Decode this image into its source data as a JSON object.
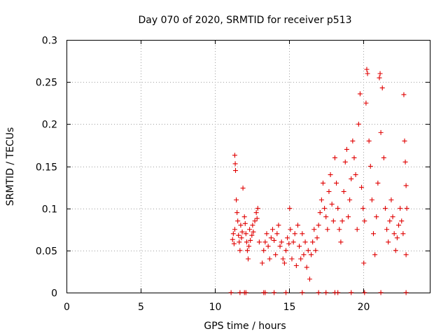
{
  "chart_data": {
    "type": "scatter",
    "title": "Day 070 of 2020, SRMTID for receiver p513",
    "xlabel": "GPS time / hours",
    "ylabel": "SRMTID / TECUs",
    "xlim": [
      0,
      24.5
    ],
    "ylim": [
      0,
      0.3
    ],
    "x_ticks": [
      0,
      5,
      10,
      15,
      20
    ],
    "x_tick_labels": [
      "0",
      "5",
      "10",
      "15",
      "20"
    ],
    "y_ticks": [
      0,
      0.05,
      0.1,
      0.15,
      0.2,
      0.25,
      0.3
    ],
    "y_tick_labels": [
      "0",
      "0.05",
      "0.1",
      "0.15",
      "0.2",
      "0.25",
      "0.3"
    ],
    "grid": true,
    "marker": "plus",
    "marker_color": "#e00000",
    "series": [
      {
        "name": "p513",
        "points": [
          [
            11.1,
            0.0
          ],
          [
            11.7,
            0.0
          ],
          [
            12.0,
            0.0
          ],
          [
            12.1,
            0.0
          ],
          [
            13.3,
            0.0
          ],
          [
            13.4,
            0.0
          ],
          [
            14.0,
            0.0
          ],
          [
            14.8,
            0.0
          ],
          [
            15.9,
            0.0
          ],
          [
            17.0,
            0.0
          ],
          [
            17.5,
            0.0
          ],
          [
            18.1,
            0.0
          ],
          [
            18.3,
            0.0
          ],
          [
            19.2,
            0.0
          ],
          [
            20.1,
            0.0
          ],
          [
            21.2,
            0.0
          ],
          [
            22.9,
            0.0
          ],
          [
            11.2,
            0.063
          ],
          [
            11.25,
            0.07
          ],
          [
            11.3,
            0.058
          ],
          [
            11.35,
            0.075
          ],
          [
            11.35,
            0.163
          ],
          [
            11.38,
            0.153
          ],
          [
            11.4,
            0.145
          ],
          [
            11.45,
            0.11
          ],
          [
            11.5,
            0.095
          ],
          [
            11.55,
            0.085
          ],
          [
            11.6,
            0.068
          ],
          [
            11.65,
            0.06
          ],
          [
            11.7,
            0.05
          ],
          [
            11.75,
            0.08
          ],
          [
            11.8,
            0.065
          ],
          [
            11.85,
            0.072
          ],
          [
            11.9,
            0.124
          ],
          [
            12.0,
            0.09
          ],
          [
            12.05,
            0.082
          ],
          [
            12.1,
            0.07
          ],
          [
            12.15,
            0.06
          ],
          [
            12.2,
            0.05
          ],
          [
            12.25,
            0.04
          ],
          [
            12.3,
            0.055
          ],
          [
            12.35,
            0.075
          ],
          [
            12.4,
            0.062
          ],
          [
            12.5,
            0.068
          ],
          [
            12.55,
            0.08
          ],
          [
            12.6,
            0.072
          ],
          [
            12.7,
            0.085
          ],
          [
            12.8,
            0.095
          ],
          [
            12.85,
            0.088
          ],
          [
            12.9,
            0.1
          ],
          [
            13.0,
            0.06
          ],
          [
            13.2,
            0.035
          ],
          [
            13.3,
            0.05
          ],
          [
            13.4,
            0.06
          ],
          [
            13.5,
            0.07
          ],
          [
            13.6,
            0.055
          ],
          [
            13.7,
            0.04
          ],
          [
            13.8,
            0.065
          ],
          [
            13.9,
            0.075
          ],
          [
            14.0,
            0.062
          ],
          [
            14.1,
            0.045
          ],
          [
            14.2,
            0.07
          ],
          [
            14.3,
            0.08
          ],
          [
            14.4,
            0.055
          ],
          [
            14.5,
            0.06
          ],
          [
            14.6,
            0.04
          ],
          [
            14.7,
            0.035
          ],
          [
            14.8,
            0.05
          ],
          [
            14.9,
            0.065
          ],
          [
            15.0,
            0.058
          ],
          [
            15.05,
            0.1
          ],
          [
            15.1,
            0.075
          ],
          [
            15.2,
            0.04
          ],
          [
            15.3,
            0.06
          ],
          [
            15.4,
            0.07
          ],
          [
            15.5,
            0.032
          ],
          [
            15.6,
            0.08
          ],
          [
            15.7,
            0.055
          ],
          [
            15.8,
            0.04
          ],
          [
            15.9,
            0.07
          ],
          [
            16.0,
            0.045
          ],
          [
            16.1,
            0.06
          ],
          [
            16.2,
            0.03
          ],
          [
            16.3,
            0.05
          ],
          [
            16.4,
            0.016
          ],
          [
            16.5,
            0.045
          ],
          [
            16.6,
            0.06
          ],
          [
            16.7,
            0.075
          ],
          [
            16.8,
            0.05
          ],
          [
            16.9,
            0.065
          ],
          [
            17.0,
            0.08
          ],
          [
            17.1,
            0.095
          ],
          [
            17.2,
            0.11
          ],
          [
            17.3,
            0.13
          ],
          [
            17.4,
            0.1
          ],
          [
            17.5,
            0.09
          ],
          [
            17.6,
            0.075
          ],
          [
            17.7,
            0.12
          ],
          [
            17.8,
            0.14
          ],
          [
            17.9,
            0.105
          ],
          [
            18.0,
            0.085
          ],
          [
            18.1,
            0.16
          ],
          [
            18.2,
            0.13
          ],
          [
            18.3,
            0.1
          ],
          [
            18.4,
            0.075
          ],
          [
            18.5,
            0.06
          ],
          [
            18.6,
            0.085
          ],
          [
            18.7,
            0.12
          ],
          [
            18.8,
            0.155
          ],
          [
            18.9,
            0.17
          ],
          [
            19.0,
            0.09
          ],
          [
            19.1,
            0.11
          ],
          [
            19.2,
            0.135
          ],
          [
            19.3,
            0.18
          ],
          [
            19.4,
            0.16
          ],
          [
            19.5,
            0.14
          ],
          [
            19.6,
            0.075
          ],
          [
            19.7,
            0.2
          ],
          [
            19.8,
            0.236
          ],
          [
            19.9,
            0.125
          ],
          [
            20.0,
            0.1
          ],
          [
            20.05,
            0.035
          ],
          [
            20.1,
            0.085
          ],
          [
            20.2,
            0.225
          ],
          [
            20.25,
            0.265
          ],
          [
            20.3,
            0.26
          ],
          [
            20.4,
            0.18
          ],
          [
            20.5,
            0.15
          ],
          [
            20.6,
            0.11
          ],
          [
            20.7,
            0.07
          ],
          [
            20.8,
            0.045
          ],
          [
            20.9,
            0.09
          ],
          [
            21.0,
            0.13
          ],
          [
            21.1,
            0.255
          ],
          [
            21.15,
            0.26
          ],
          [
            21.2,
            0.19
          ],
          [
            21.3,
            0.243
          ],
          [
            21.4,
            0.16
          ],
          [
            21.5,
            0.1
          ],
          [
            21.6,
            0.075
          ],
          [
            21.7,
            0.06
          ],
          [
            21.8,
            0.085
          ],
          [
            21.9,
            0.11
          ],
          [
            22.0,
            0.09
          ],
          [
            22.1,
            0.07
          ],
          [
            22.2,
            0.05
          ],
          [
            22.3,
            0.065
          ],
          [
            22.4,
            0.08
          ],
          [
            22.5,
            0.1
          ],
          [
            22.6,
            0.085
          ],
          [
            22.7,
            0.07
          ],
          [
            22.75,
            0.235
          ],
          [
            22.8,
            0.18
          ],
          [
            22.85,
            0.155
          ],
          [
            22.9,
            0.127
          ],
          [
            22.95,
            0.1
          ],
          [
            22.9,
            0.045
          ]
        ]
      }
    ]
  }
}
